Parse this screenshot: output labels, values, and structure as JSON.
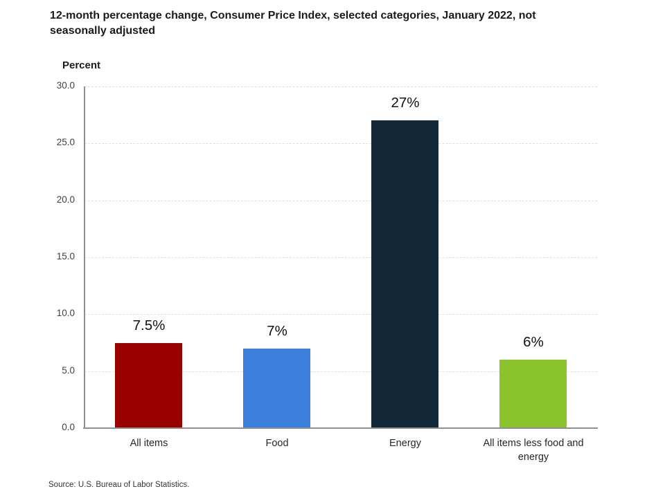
{
  "header": {
    "title_lines": [
      "12-month percentage change, Consumer Price Index, selected categories, January 2022, not",
      "seasonally adjusted"
    ]
  },
  "axis": {
    "y_title": "Percent"
  },
  "footer": {
    "source": "Source: U.S. Bureau of Labor Statistics."
  },
  "colors": {
    "axis_line": "#8f8f8f",
    "gridline": "#dedede",
    "title_text": "#1a1a1a",
    "tick_text": "#404040"
  },
  "chart_data": {
    "type": "bar",
    "title": "12-month percentage change, Consumer Price Index, selected categories, January 2022, not seasonally adjusted",
    "xlabel": "",
    "ylabel": "Percent",
    "categories": [
      "All items",
      "Food",
      "Energy",
      "All items less food and energy"
    ],
    "values": [
      7.5,
      7,
      27,
      6
    ],
    "bar_labels": [
      "7.5%",
      "7%",
      "27%",
      "6%"
    ],
    "bar_colors": [
      "#990000",
      "#3B80DC",
      "#132839",
      "#8AC32B"
    ],
    "ylim": [
      0,
      30
    ],
    "yticks": [
      0,
      5,
      10,
      15,
      20,
      25,
      30
    ],
    "ytick_labels": [
      "0.0",
      "5.0",
      "10.0",
      "15.0",
      "20.0",
      "25.0",
      "30.0"
    ],
    "grid": "horizontal-dashed",
    "legend_position": "none",
    "source": "Source: U.S. Bureau of Labor Statistics."
  }
}
